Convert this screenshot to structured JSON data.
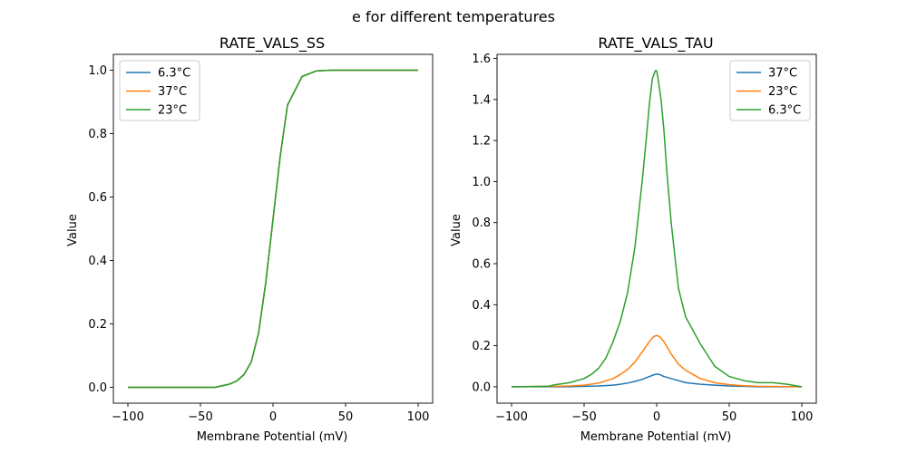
{
  "figure": {
    "suptitle": "e for different temperatures"
  },
  "chart_data": [
    {
      "type": "line",
      "title": "RATE_VALS_SS",
      "xlabel": "Membrane Potential (mV)",
      "ylabel": "Value",
      "xlim": [
        -110,
        110
      ],
      "ylim": [
        -0.05,
        1.05
      ],
      "xticks": [
        -100,
        -50,
        0,
        50,
        100
      ],
      "yticks": [
        0.0,
        0.2,
        0.4,
        0.6,
        0.8,
        1.0
      ],
      "xtick_labels": [
        "−100",
        "−50",
        "0",
        "50",
        "100"
      ],
      "ytick_labels": [
        "0.0",
        "0.2",
        "0.4",
        "0.6",
        "0.8",
        "1.0"
      ],
      "grid": false,
      "legend_position": "upper-left",
      "series": [
        {
          "name": "6.3°C",
          "color": "#1f77b4",
          "x": [
            -100,
            -40,
            -35,
            -30,
            -25,
            -20,
            -15,
            -10,
            -5,
            0,
            5,
            10,
            20,
            30,
            40,
            50,
            100
          ],
          "y": [
            0,
            0.0,
            0.005,
            0.01,
            0.02,
            0.04,
            0.08,
            0.17,
            0.33,
            0.53,
            0.73,
            0.89,
            0.98,
            0.998,
            1.0,
            1.0,
            1.0
          ]
        },
        {
          "name": "37°C",
          "color": "#ff7f0e",
          "x": [
            -100,
            -40,
            -35,
            -30,
            -25,
            -20,
            -15,
            -10,
            -5,
            0,
            5,
            10,
            20,
            30,
            40,
            50,
            100
          ],
          "y": [
            0,
            0.0,
            0.005,
            0.01,
            0.02,
            0.04,
            0.08,
            0.17,
            0.33,
            0.53,
            0.73,
            0.89,
            0.98,
            0.998,
            1.0,
            1.0,
            1.0
          ]
        },
        {
          "name": "23°C",
          "color": "#2ca02c",
          "x": [
            -100,
            -40,
            -35,
            -30,
            -25,
            -20,
            -15,
            -10,
            -5,
            0,
            5,
            10,
            20,
            30,
            40,
            50,
            100
          ],
          "y": [
            0,
            0.0,
            0.005,
            0.01,
            0.02,
            0.04,
            0.08,
            0.17,
            0.33,
            0.53,
            0.73,
            0.89,
            0.98,
            0.998,
            1.0,
            1.0,
            1.0
          ]
        }
      ]
    },
    {
      "type": "line",
      "title": "RATE_VALS_TAU",
      "xlabel": "Membrane Potential (mV)",
      "ylabel": "Value",
      "xlim": [
        -110,
        110
      ],
      "ylim": [
        -0.08,
        1.62
      ],
      "xticks": [
        -100,
        -50,
        0,
        50,
        100
      ],
      "yticks": [
        0.0,
        0.2,
        0.4,
        0.6,
        0.8,
        1.0,
        1.2,
        1.4,
        1.6
      ],
      "xtick_labels": [
        "−100",
        "−50",
        "0",
        "50",
        "100"
      ],
      "ytick_labels": [
        "0.0",
        "0.2",
        "0.4",
        "0.6",
        "0.8",
        "1.0",
        "1.2",
        "1.4",
        "1.6"
      ],
      "grid": false,
      "legend_position": "upper-right",
      "series": [
        {
          "name": "37°C",
          "color": "#1f77b4",
          "x": [
            -100,
            -60,
            -50,
            -40,
            -30,
            -25,
            -20,
            -15,
            -10,
            -5,
            -2,
            0,
            2,
            5,
            10,
            15,
            20,
            30,
            40,
            50,
            60,
            70,
            80,
            100
          ],
          "y": [
            0,
            0,
            0.002,
            0.004,
            0.008,
            0.012,
            0.018,
            0.026,
            0.036,
            0.05,
            0.058,
            0.062,
            0.06,
            0.05,
            0.04,
            0.03,
            0.02,
            0.012,
            0.008,
            0.004,
            0.002,
            0,
            0,
            0
          ]
        },
        {
          "name": "23°C",
          "color": "#ff7f0e",
          "x": [
            -100,
            -70,
            -60,
            -50,
            -40,
            -30,
            -25,
            -20,
            -15,
            -10,
            -5,
            -2,
            0,
            2,
            5,
            10,
            15,
            20,
            25,
            30,
            40,
            50,
            60,
            70,
            100
          ],
          "y": [
            0,
            0.002,
            0.004,
            0.008,
            0.018,
            0.04,
            0.06,
            0.085,
            0.12,
            0.17,
            0.22,
            0.245,
            0.25,
            0.245,
            0.22,
            0.16,
            0.11,
            0.08,
            0.06,
            0.04,
            0.02,
            0.01,
            0.005,
            0.002,
            0
          ]
        },
        {
          "name": "6.3°C",
          "color": "#2ca02c",
          "x": [
            -100,
            -75,
            -70,
            -60,
            -50,
            -45,
            -40,
            -35,
            -30,
            -25,
            -20,
            -15,
            -10,
            -7,
            -5,
            -3,
            -1,
            0,
            1,
            3,
            5,
            7,
            10,
            15,
            20,
            30,
            40,
            50,
            60,
            70,
            80,
            90,
            100
          ],
          "y": [
            0,
            0.002,
            0.01,
            0.02,
            0.04,
            0.06,
            0.09,
            0.14,
            0.22,
            0.32,
            0.46,
            0.68,
            1.0,
            1.22,
            1.38,
            1.5,
            1.54,
            1.54,
            1.5,
            1.4,
            1.25,
            1.05,
            0.8,
            0.48,
            0.34,
            0.21,
            0.1,
            0.05,
            0.03,
            0.02,
            0.02,
            0.012,
            0
          ]
        }
      ]
    }
  ]
}
